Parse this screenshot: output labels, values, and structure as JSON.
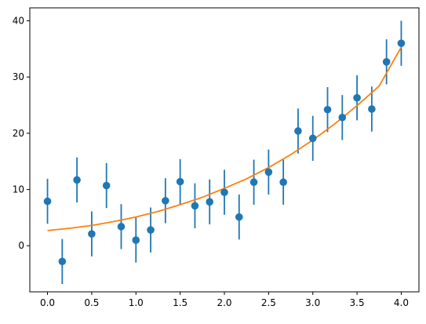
{
  "chart_data": {
    "type": "scatter",
    "title": "",
    "xlabel": "",
    "ylabel": "",
    "xlim": [
      -0.2,
      4.2
    ],
    "ylim": [
      -8.2,
      42.3
    ],
    "xticks": [
      0.0,
      0.5,
      1.0,
      1.5,
      2.0,
      2.5,
      3.0,
      3.5,
      4.0
    ],
    "xtick_labels": [
      "0.0",
      "0.5",
      "1.0",
      "1.5",
      "2.0",
      "2.5",
      "3.0",
      "3.5",
      "4.0"
    ],
    "yticks": [
      0,
      10,
      20,
      30,
      40
    ],
    "ytick_labels": [
      "0",
      "10",
      "20",
      "30",
      "40"
    ],
    "grid": false,
    "series": [
      {
        "kind": "errorbar",
        "color": "#1f77b4",
        "x": [
          0.0,
          0.1667,
          0.3333,
          0.5,
          0.6667,
          0.8333,
          1.0,
          1.1667,
          1.3333,
          1.5,
          1.6667,
          1.8333,
          2.0,
          2.1667,
          2.3333,
          2.5,
          2.6667,
          2.8333,
          3.0,
          3.1667,
          3.3333,
          3.5,
          3.6667,
          3.8333,
          4.0
        ],
        "y": [
          7.9,
          -2.8,
          11.7,
          2.1,
          10.7,
          3.4,
          1.0,
          2.8,
          8.0,
          11.4,
          7.1,
          7.8,
          9.5,
          5.1,
          11.3,
          13.1,
          11.3,
          20.4,
          19.1,
          24.2,
          22.8,
          26.3,
          24.3,
          32.7,
          36.0
        ],
        "yerr": 4.0
      },
      {
        "kind": "line",
        "color": "#ff7f0e",
        "x": [
          0.0,
          0.25,
          0.5,
          0.75,
          1.0,
          1.25,
          1.5,
          1.75,
          2.0,
          2.25,
          2.5,
          2.75,
          3.0,
          3.25,
          3.5,
          3.75,
          4.0
        ],
        "y": [
          2.7,
          3.1,
          3.6,
          4.3,
          5.1,
          6.1,
          7.3,
          8.6,
          10.2,
          11.9,
          13.9,
          16.2,
          18.8,
          21.7,
          24.9,
          28.4,
          35.3
        ]
      }
    ]
  }
}
